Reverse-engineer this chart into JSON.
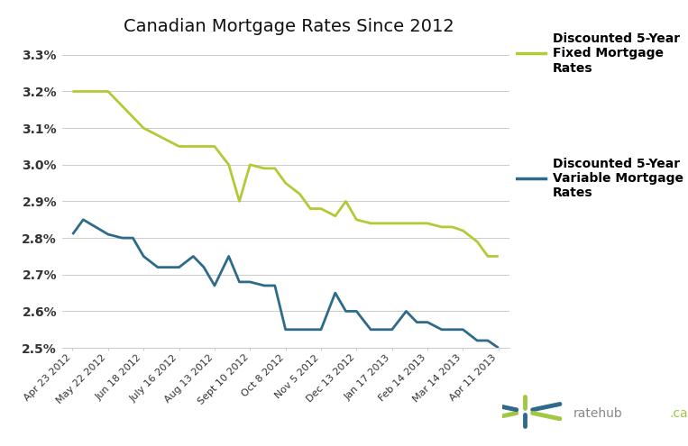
{
  "title": "Canadian Mortgage Rates Since 2012",
  "title_fontsize": 14,
  "background_color": "#ffffff",
  "fixed_color": "#b5c835",
  "variable_color": "#2e6b8a",
  "fixed_label": "Discounted 5-Year\nFixed Mortgage\nRates",
  "variable_label": "Discounted 5-Year\nVariable Mortgage\nRates",
  "ylim": [
    2.5,
    3.34
  ],
  "yticks": [
    2.5,
    2.6,
    2.7,
    2.8,
    2.9,
    3.0,
    3.1,
    3.2,
    3.3
  ],
  "ytick_labels": [
    "2.5%",
    "2.6%",
    "2.7%",
    "2.8%",
    "2.9%",
    "3.0%",
    "3.1%",
    "3.2%",
    "3.3%"
  ],
  "xtick_labels": [
    "Apr 23 2012",
    "May 22 2012",
    "Jun 18 2012",
    "July 16 2012",
    "Aug 13 2012",
    "Sept 10 2012",
    "Oct 8 2012",
    "Nov 5 2012",
    "Dec 13 2012",
    "Jan 17 2013",
    "Feb 14 2013",
    "Mar 14 2013",
    "Apr 11 2013"
  ],
  "fixed_x": [
    0,
    1,
    2,
    3,
    4,
    4.4,
    4.7,
    5,
    5.4,
    5.7,
    6,
    6.4,
    6.7,
    7,
    7.4,
    7.7,
    8,
    8.4,
    8.7,
    9,
    9.4,
    9.7,
    10,
    10.4,
    10.7,
    11,
    11.4,
    11.7,
    12
  ],
  "fixed_y": [
    3.2,
    3.2,
    3.1,
    3.05,
    3.05,
    3.0,
    2.9,
    3.0,
    2.99,
    2.99,
    2.95,
    2.92,
    2.88,
    2.88,
    2.86,
    2.9,
    2.85,
    2.84,
    2.84,
    2.84,
    2.84,
    2.84,
    2.84,
    2.83,
    2.83,
    2.82,
    2.79,
    2.75,
    2.75
  ],
  "variable_x": [
    0,
    0.3,
    1,
    1.4,
    1.7,
    2,
    2.4,
    2.7,
    3,
    3.4,
    3.7,
    4,
    4.4,
    4.7,
    5,
    5.4,
    5.7,
    6,
    6.4,
    6.7,
    7,
    7.4,
    7.7,
    8,
    8.4,
    8.7,
    9,
    9.4,
    9.7,
    10,
    10.4,
    10.7,
    11,
    11.4,
    11.7,
    12
  ],
  "variable_y": [
    2.81,
    2.85,
    2.81,
    2.8,
    2.8,
    2.75,
    2.72,
    2.72,
    2.72,
    2.75,
    2.72,
    2.67,
    2.75,
    2.68,
    2.68,
    2.67,
    2.67,
    2.55,
    2.55,
    2.55,
    2.55,
    2.65,
    2.6,
    2.6,
    2.55,
    2.55,
    2.55,
    2.6,
    2.57,
    2.57,
    2.55,
    2.55,
    2.55,
    2.52,
    2.52,
    2.5
  ],
  "line_width": 2.0,
  "legend_fontsize": 10,
  "grid_color": "#cccccc",
  "tick_color": "#888888",
  "ratehub_color_text": "#888888",
  "ratehub_color_ca": "#a0c840",
  "ratehub_star_color": "#2e6b8a",
  "ratehub_star_arm_color": "#a0c840"
}
